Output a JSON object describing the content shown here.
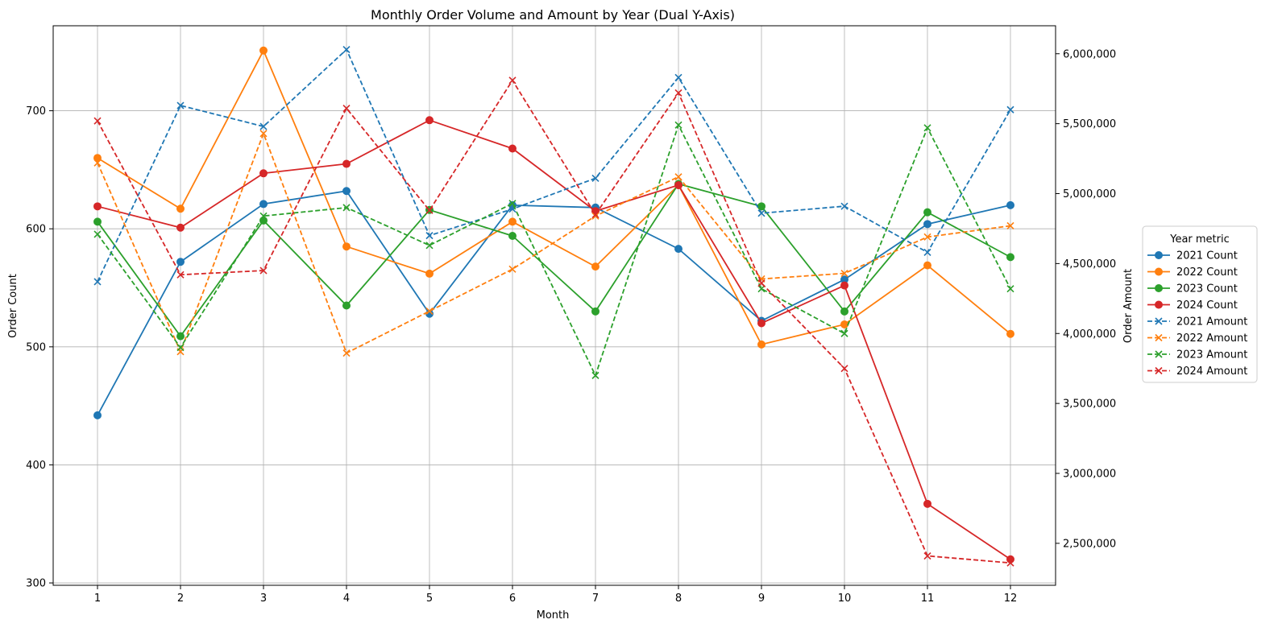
{
  "chart_data": {
    "type": "line",
    "title": "Monthly Order Volume and Amount by Year (Dual Y-Axis)",
    "xlabel": "Month",
    "ylabel_left": "Order Count",
    "ylabel_right": "Order Amount",
    "x": [
      1,
      2,
      3,
      4,
      5,
      6,
      7,
      8,
      9,
      10,
      11,
      12
    ],
    "ylim_left": [
      298,
      772
    ],
    "ylim_right": [
      2200000,
      6200000
    ],
    "yticks_left": [
      300,
      400,
      500,
      600,
      700
    ],
    "yticks_right": [
      2500000,
      3000000,
      3500000,
      4000000,
      4500000,
      5000000,
      5500000,
      6000000
    ],
    "yticks_right_labels": [
      "2,500,000",
      "3,000,000",
      "3,500,000",
      "4,000,000",
      "4,500,000",
      "5,000,000",
      "5,500,000",
      "6,000,000"
    ],
    "grid": true,
    "legend_title": "Year metric",
    "legend_position": "right",
    "series": [
      {
        "name": "2021 Count",
        "axis": "left",
        "color": "#1f77b4",
        "style": "solid",
        "marker": "circle",
        "values": [
          442,
          572,
          621,
          632,
          528,
          620,
          618,
          583,
          522,
          557,
          604,
          620
        ]
      },
      {
        "name": "2022 Count",
        "axis": "left",
        "color": "#ff7f0e",
        "style": "solid",
        "marker": "circle",
        "values": [
          660,
          617,
          751,
          585,
          562,
          606,
          568,
          637,
          502,
          519,
          569,
          511
        ]
      },
      {
        "name": "2023 Count",
        "axis": "left",
        "color": "#2ca02c",
        "style": "solid",
        "marker": "circle",
        "values": [
          606,
          509,
          607,
          535,
          616,
          594,
          530,
          638,
          619,
          530,
          614,
          576
        ]
      },
      {
        "name": "2024 Count",
        "axis": "left",
        "color": "#d62728",
        "style": "solid",
        "marker": "circle",
        "values": [
          619,
          601,
          647,
          655,
          692,
          668,
          615,
          637,
          520,
          552,
          367,
          320
        ]
      },
      {
        "name": "2021 Amount",
        "axis": "right",
        "color": "#1f77b4",
        "style": "dashed",
        "marker": "x",
        "values": [
          4370000,
          5630000,
          5480000,
          6030000,
          4700000,
          4890000,
          5110000,
          5830000,
          4860000,
          4910000,
          4580000,
          5600000
        ]
      },
      {
        "name": "2022 Amount",
        "axis": "right",
        "color": "#ff7f0e",
        "style": "dashed",
        "marker": "x",
        "values": [
          5220000,
          3870000,
          5430000,
          3860000,
          4160000,
          4460000,
          4840000,
          5120000,
          4390000,
          4430000,
          4690000,
          4770000
        ]
      },
      {
        "name": "2023 Amount",
        "axis": "right",
        "color": "#2ca02c",
        "style": "dashed",
        "marker": "x",
        "values": [
          4710000,
          3900000,
          4840000,
          4900000,
          4630000,
          4930000,
          3700000,
          5490000,
          4320000,
          4000000,
          5470000,
          4320000
        ]
      },
      {
        "name": "2024 Amount",
        "axis": "right",
        "color": "#d62728",
        "style": "dashed",
        "marker": "x",
        "values": [
          5520000,
          4420000,
          4450000,
          5610000,
          4880000,
          5810000,
          4850000,
          5720000,
          4360000,
          3750000,
          2410000,
          2360000
        ]
      }
    ]
  }
}
